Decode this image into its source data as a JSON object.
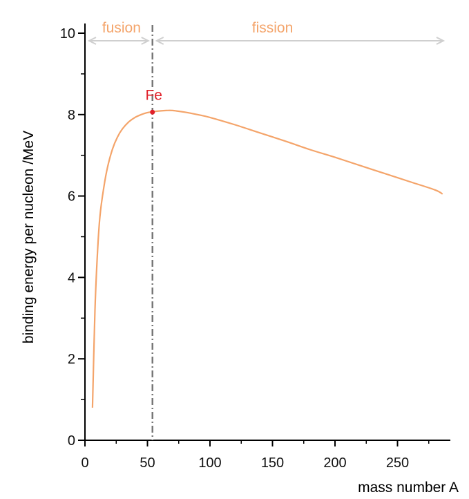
{
  "chart_data": {
    "type": "line",
    "xlabel": "mass number A",
    "ylabel": "binding energy per nucleon /MeV",
    "xlim": [
      0,
      290
    ],
    "ylim": [
      0,
      10
    ],
    "x_ticks": [
      0,
      50,
      100,
      150,
      200,
      250
    ],
    "x_tick_labels": [
      "0",
      "50",
      "100",
      "150",
      "200",
      "250"
    ],
    "y_ticks": [
      0,
      2,
      4,
      6,
      8,
      10
    ],
    "y_tick_labels": [
      "0",
      "2",
      "4",
      "6",
      "8",
      "10"
    ],
    "grid": false,
    "series": [
      {
        "color": "#f4a46a",
        "x": [
          6,
          8,
          10,
          12,
          15,
          18,
          22,
          26,
          30,
          35,
          40,
          45,
          50,
          54,
          60,
          65,
          70,
          80,
          90,
          100,
          120,
          140,
          160,
          180,
          200,
          220,
          240,
          260,
          280,
          286
        ],
        "y": [
          0.8,
          3.2,
          4.6,
          5.5,
          6.2,
          6.7,
          7.15,
          7.45,
          7.65,
          7.82,
          7.93,
          8.0,
          8.05,
          8.07,
          8.09,
          8.1,
          8.1,
          8.06,
          8.0,
          7.93,
          7.75,
          7.55,
          7.35,
          7.14,
          6.95,
          6.75,
          6.55,
          6.35,
          6.15,
          6.05
        ]
      }
    ],
    "vertical_line": {
      "x": 54,
      "style": "dash-dot",
      "color": "#777777"
    },
    "highlight_point": {
      "x": 54,
      "y": 8.06,
      "label": "Fe",
      "color": "#e0202a"
    },
    "regions": [
      {
        "label": "fusion",
        "from": 0,
        "to": 54,
        "label_color": "#f4a46a",
        "arrow_color": "#cfcfcf"
      },
      {
        "label": "fission",
        "from": 290,
        "to": 54,
        "label_color": "#f4a46a",
        "arrow_color": "#cfcfcf"
      }
    ]
  }
}
